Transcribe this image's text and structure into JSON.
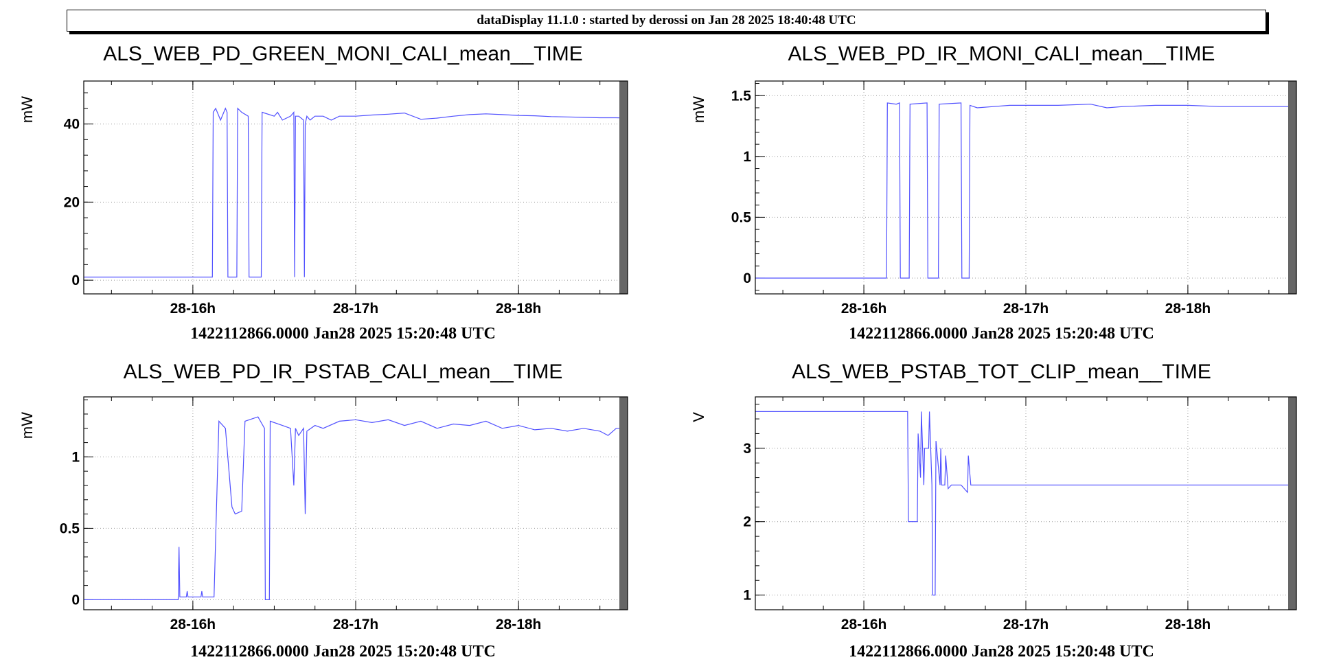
{
  "banner": "dataDisplay 11.1.0 : started by derossi on Jan 28 2025 18:40:48 UTC",
  "series_color": "#5050ff",
  "chart_data": [
    {
      "type": "line",
      "title": "ALS_WEB_PD_GREEN_MONI_CALI_mean__TIME",
      "ylabel": "mW",
      "xlabel": "1422112866.0000 Jan28 2025 15:20:48 UTC",
      "xlim": [
        15.33,
        18.67
      ],
      "ylim": [
        -3.5,
        51
      ],
      "yticks": [
        {
          "v": 0,
          "l": "0"
        },
        {
          "v": 20,
          "l": "20"
        },
        {
          "v": 40,
          "l": "40"
        }
      ],
      "xticks": [
        {
          "v": 16,
          "l": "28-16h"
        },
        {
          "v": 17,
          "l": "28-17h"
        },
        {
          "v": 18,
          "l": "28-18h"
        }
      ],
      "grid": true,
      "series": [
        {
          "x": [
            15.33,
            16.12,
            16.125,
            16.14,
            16.17,
            16.2,
            16.21,
            16.215,
            16.27,
            16.275,
            16.3,
            16.34,
            16.345,
            16.42,
            16.425,
            16.5,
            16.52,
            16.55,
            16.6,
            16.62,
            16.625,
            16.63,
            16.65,
            16.68,
            16.685,
            16.69,
            16.7,
            16.72,
            16.75,
            16.8,
            16.85,
            16.9,
            17.0,
            17.1,
            17.2,
            17.3,
            17.4,
            17.5,
            17.6,
            17.7,
            17.8,
            17.9,
            18.0,
            18.1,
            18.2,
            18.3,
            18.4,
            18.5,
            18.6,
            18.67
          ],
          "y": [
            0.8,
            0.8,
            43,
            44,
            41,
            44,
            43,
            0.8,
            0.8,
            44,
            43,
            42,
            0.8,
            0.8,
            43,
            42,
            43,
            41,
            42,
            43,
            0.8,
            42,
            42,
            41,
            0.8,
            40,
            42,
            41,
            42,
            42,
            41,
            42,
            42,
            42.3,
            42.5,
            42.8,
            41.2,
            41.5,
            42.0,
            42.4,
            42.6,
            42.4,
            42.2,
            42.1,
            41.9,
            41.8,
            41.7,
            41.6,
            41.6,
            41.5
          ]
        }
      ]
    },
    {
      "type": "line",
      "title": "ALS_WEB_PD_IR_MONI_CALI_mean__TIME",
      "ylabel": "mW",
      "xlabel": "1422112866.0000 Jan28 2025 15:20:48 UTC",
      "xlim": [
        15.33,
        18.67
      ],
      "ylim": [
        -0.13,
        1.62
      ],
      "yticks": [
        {
          "v": 0,
          "l": "0"
        },
        {
          "v": 0.5,
          "l": "0.5"
        },
        {
          "v": 1,
          "l": "1"
        },
        {
          "v": 1.5,
          "l": "1.5"
        }
      ],
      "xticks": [
        {
          "v": 16,
          "l": "28-16h"
        },
        {
          "v": 17,
          "l": "28-17h"
        },
        {
          "v": 18,
          "l": "28-18h"
        }
      ],
      "grid": true,
      "series": [
        {
          "x": [
            15.33,
            16.14,
            16.145,
            16.2,
            16.22,
            16.225,
            16.28,
            16.285,
            16.39,
            16.395,
            16.46,
            16.465,
            16.6,
            16.605,
            16.65,
            16.655,
            16.7,
            16.8,
            16.9,
            17.0,
            17.2,
            17.4,
            17.5,
            17.6,
            17.8,
            18.0,
            18.2,
            18.4,
            18.67
          ],
          "y": [
            0.0,
            0.0,
            1.44,
            1.43,
            1.44,
            0.0,
            0.0,
            1.43,
            1.44,
            0.0,
            0.0,
            1.43,
            1.44,
            0.0,
            0.0,
            1.42,
            1.4,
            1.41,
            1.42,
            1.42,
            1.42,
            1.43,
            1.4,
            1.41,
            1.42,
            1.42,
            1.41,
            1.41,
            1.41
          ]
        }
      ]
    },
    {
      "type": "line",
      "title": "ALS_WEB_PD_IR_PSTAB_CALI_mean__TIME",
      "ylabel": "mW",
      "xlabel": "1422112866.0000 Jan28 2025 15:20:48 UTC",
      "xlim": [
        15.33,
        18.67
      ],
      "ylim": [
        -0.07,
        1.42
      ],
      "yticks": [
        {
          "v": 0,
          "l": "0"
        },
        {
          "v": 0.5,
          "l": "0.5"
        },
        {
          "v": 1,
          "l": "1"
        }
      ],
      "xticks": [
        {
          "v": 16,
          "l": "28-16h"
        },
        {
          "v": 17,
          "l": "28-17h"
        },
        {
          "v": 18,
          "l": "28-18h"
        }
      ],
      "grid": true,
      "series": [
        {
          "x": [
            15.33,
            15.91,
            15.915,
            15.92,
            15.96,
            15.965,
            15.97,
            16.05,
            16.055,
            16.06,
            16.13,
            16.16,
            16.2,
            16.24,
            16.26,
            16.3,
            16.32,
            16.4,
            16.44,
            16.445,
            16.47,
            16.475,
            16.55,
            16.6,
            16.62,
            16.63,
            16.65,
            16.68,
            16.69,
            16.7,
            16.75,
            16.8,
            16.9,
            17.0,
            17.1,
            17.2,
            17.3,
            17.4,
            17.5,
            17.6,
            17.7,
            17.8,
            17.9,
            18.0,
            18.1,
            18.2,
            18.3,
            18.4,
            18.5,
            18.55,
            18.6,
            18.67
          ],
          "y": [
            0.0,
            0.0,
            0.37,
            0.02,
            0.02,
            0.06,
            0.02,
            0.02,
            0.06,
            0.02,
            0.02,
            1.25,
            1.2,
            0.65,
            0.6,
            0.62,
            1.25,
            1.28,
            1.2,
            0.0,
            0.0,
            1.25,
            1.22,
            1.2,
            0.8,
            1.2,
            1.15,
            1.2,
            0.6,
            1.18,
            1.22,
            1.2,
            1.25,
            1.26,
            1.24,
            1.26,
            1.22,
            1.25,
            1.2,
            1.23,
            1.22,
            1.25,
            1.2,
            1.22,
            1.19,
            1.2,
            1.18,
            1.2,
            1.18,
            1.15,
            1.2,
            1.2
          ]
        }
      ]
    },
    {
      "type": "line",
      "title": "ALS_WEB_PSTAB_TOT_CLIP_mean__TIME",
      "ylabel": "V",
      "xlabel": "1422112866.0000 Jan28 2025 15:20:48 UTC",
      "xlim": [
        15.33,
        18.67
      ],
      "ylim": [
        0.8,
        3.7
      ],
      "yticks": [
        {
          "v": 1,
          "l": "1"
        },
        {
          "v": 2,
          "l": "2"
        },
        {
          "v": 3,
          "l": "3"
        }
      ],
      "xticks": [
        {
          "v": 16,
          "l": "28-16h"
        },
        {
          "v": 17,
          "l": "28-17h"
        },
        {
          "v": 18,
          "l": "28-18h"
        }
      ],
      "grid": true,
      "series": [
        {
          "x": [
            15.33,
            16.27,
            16.275,
            16.33,
            16.335,
            16.35,
            16.355,
            16.37,
            16.375,
            16.4,
            16.405,
            16.42,
            16.425,
            16.44,
            16.445,
            16.47,
            16.475,
            16.48,
            16.5,
            16.505,
            16.52,
            16.54,
            16.6,
            16.64,
            16.645,
            16.66,
            16.665,
            16.7,
            17.0,
            17.5,
            18.0,
            18.5,
            18.67
          ],
          "y": [
            3.5,
            3.5,
            2.0,
            2.0,
            3.2,
            2.6,
            3.5,
            2.5,
            3.0,
            3.0,
            3.5,
            2.5,
            1.0,
            1.0,
            3.1,
            2.5,
            3.0,
            2.5,
            2.5,
            2.9,
            2.45,
            2.5,
            2.5,
            2.4,
            2.9,
            2.5,
            2.5,
            2.5,
            2.5,
            2.5,
            2.5,
            2.5,
            2.5
          ]
        }
      ]
    }
  ]
}
